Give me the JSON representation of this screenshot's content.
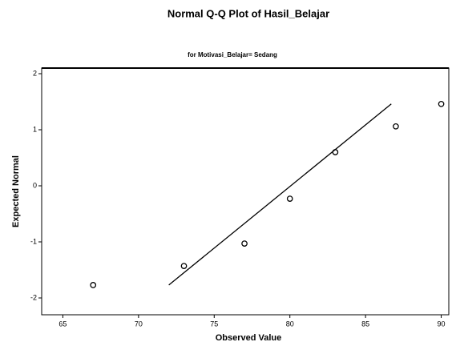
{
  "chart_data": {
    "type": "scatter",
    "title": "Normal Q-Q Plot of Hasil_Belajar",
    "subtitle": "for Motivasi_Belajar= Sedang",
    "x_label": "Observed Value",
    "y_label": "Expected Normal",
    "x": [
      67,
      73,
      77,
      80,
      83,
      87,
      90
    ],
    "values": [
      -1.77,
      -1.43,
      -1.03,
      -0.23,
      0.6,
      1.06,
      1.46
    ],
    "reference_line": {
      "x": [
        72,
        86.7
      ],
      "values": [
        -1.77,
        1.46
      ]
    },
    "xlim": [
      63.6,
      90.5
    ],
    "xticks": [
      65,
      70,
      75,
      80,
      85,
      90
    ],
    "ylim": [
      -2.3,
      2.1
    ],
    "yticks": [
      -2,
      -1,
      0,
      1,
      2
    ],
    "color": "#000000"
  }
}
